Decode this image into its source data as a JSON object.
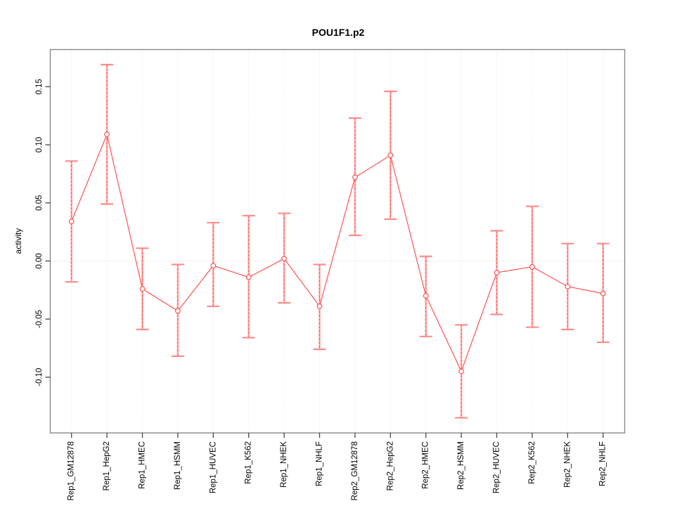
{
  "title": "POU1F1.p2",
  "y_axis_label": "activity",
  "chart_data": {
    "type": "line",
    "title": "POU1F1.p2",
    "xlabel": "",
    "ylabel": "activity",
    "categories": [
      "Rep1_GM12878",
      "Rep1_HepG2",
      "Rep1_HMEC",
      "Rep1_HSMM",
      "Rep1_HUVEC",
      "Rep1_K562",
      "Rep1_NHEK",
      "Rep1_NHLF",
      "Rep2_GM12878",
      "Rep2_HepG2",
      "Rep2_HMEC",
      "Rep2_HSMM",
      "Rep2_HUVEC",
      "Rep2_K562",
      "Rep2_NHEK",
      "Rep2_NHLF"
    ],
    "series": [
      {
        "name": "activity",
        "values": [
          0.034,
          0.109,
          -0.024,
          -0.043,
          -0.004,
          -0.014,
          0.002,
          -0.039,
          0.072,
          0.091,
          -0.03,
          -0.095,
          -0.01,
          -0.005,
          -0.022,
          -0.028
        ],
        "error_high": [
          0.086,
          0.169,
          0.011,
          -0.003,
          0.033,
          0.039,
          0.041,
          -0.003,
          0.123,
          0.146,
          0.004,
          -0.055,
          0.026,
          0.047,
          0.015,
          0.015
        ],
        "error_low": [
          -0.018,
          0.049,
          -0.059,
          -0.082,
          -0.039,
          -0.066,
          -0.036,
          -0.076,
          0.022,
          0.036,
          -0.065,
          -0.135,
          -0.046,
          -0.057,
          -0.059,
          -0.07
        ]
      }
    ],
    "yticks": [
      -0.1,
      -0.05,
      0.0,
      0.05,
      0.1,
      0.15
    ],
    "ylim": [
      -0.148,
      0.182
    ],
    "grid": {
      "vertical": "dotted-per-category",
      "horizontal": "dotted-at-zero"
    },
    "legend": "none",
    "marker": "open-circle",
    "colors": {
      "line": "#FF5252",
      "error_bar": "#FFABAB",
      "error_cap": "#FF8C8C",
      "grid": "#DEDEDE",
      "zero_line": "#CFCFCF",
      "frame": "#888888",
      "tick": "#444444",
      "text": "#000000"
    }
  }
}
